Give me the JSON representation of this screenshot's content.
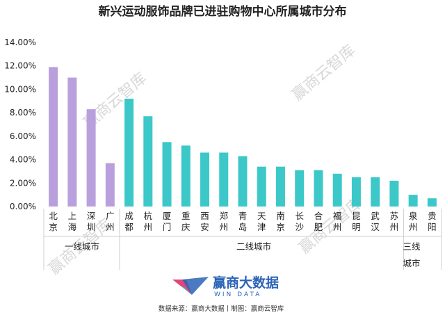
{
  "chart_data": {
    "type": "bar",
    "title": "新兴运动服饰品牌已进驻购物中心所属城市分布",
    "categories": [
      "北京",
      "上海",
      "深圳",
      "广州",
      "成都",
      "杭州",
      "厦门",
      "重庆",
      "西安",
      "郑州",
      "青岛",
      "天津",
      "南京",
      "长沙",
      "合肥",
      "福州",
      "昆明",
      "武汉",
      "苏州",
      "泉州",
      "贵阳"
    ],
    "values": [
      11.9,
      11.0,
      8.3,
      3.7,
      9.2,
      7.7,
      5.5,
      5.2,
      4.6,
      4.6,
      4.3,
      3.4,
      3.4,
      3.1,
      3.1,
      2.8,
      2.5,
      2.5,
      2.2,
      1.0,
      0.7
    ],
    "ylim": [
      0,
      14
    ],
    "ytick_labels": [
      "0.00%",
      "2.00%",
      "4.00%",
      "6.00%",
      "8.00%",
      "10.00%",
      "12.00%",
      "14.00%"
    ],
    "groups": [
      {
        "label": "一线城市",
        "start": 0,
        "end": 3,
        "color": "#b9a0dc"
      },
      {
        "label": "二线城市",
        "start": 4,
        "end": 18,
        "color": "#3cc8c8"
      },
      {
        "label": "三线城市",
        "start": 19,
        "end": 20,
        "color": "#3cc8c8"
      }
    ],
    "grid": false,
    "legend": "none"
  },
  "group_labels": {
    "tier1": "一线城市",
    "tier2": "二线城市",
    "tier3_line1": "三线",
    "tier3_line2": "城市"
  },
  "watermark": "赢商云智库",
  "logo": {
    "name": "赢商大数据",
    "sub": "WIN DATA",
    "colors": [
      "#e0306a",
      "#2b63b6",
      "#3cc8c8"
    ]
  },
  "source": "数据来源：赢商大数据丨制图：赢商云智库"
}
